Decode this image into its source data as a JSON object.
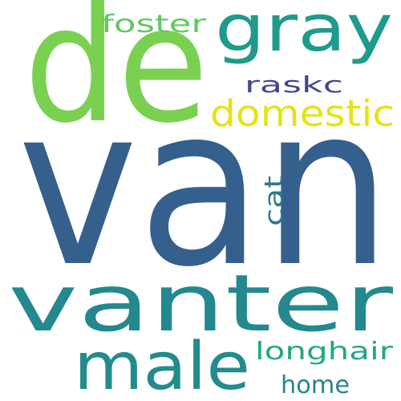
{
  "words": [
    {
      "id": "van",
      "text": "van",
      "color": "#355f8d",
      "rank": 1
    },
    {
      "id": "de",
      "text": "de",
      "color": "#7ad151",
      "rank": 2
    },
    {
      "id": "vanter",
      "text": "vanter",
      "color": "#23898e",
      "rank": 3
    },
    {
      "id": "male",
      "text": "male",
      "color": "#228c8d",
      "rank": 4
    },
    {
      "id": "gray",
      "text": "gray",
      "color": "#1e9b8a",
      "rank": 5
    },
    {
      "id": "domestic",
      "text": "domestic",
      "color": "#e3e418",
      "rank": 6
    },
    {
      "id": "longhair",
      "text": "longhair",
      "color": "#22a884",
      "rank": 7
    },
    {
      "id": "foster",
      "text": "foster",
      "color": "#5ec962",
      "rank": 8
    },
    {
      "id": "raskc",
      "text": "raskc",
      "color": "#3e4989",
      "rank": 9
    },
    {
      "id": "home",
      "text": "home",
      "color": "#25848e",
      "rank": 10
    },
    {
      "id": "cat",
      "text": "cat",
      "color": "#2a788e",
      "rank": 11
    }
  ]
}
